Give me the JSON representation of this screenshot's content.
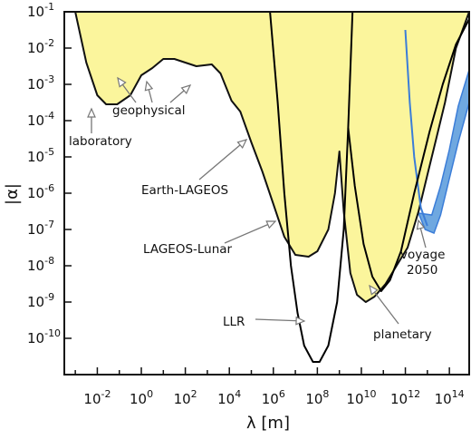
{
  "chart_data": {
    "type": "area",
    "xlabel": "λ  [m]",
    "ylabel": "|α|",
    "x_scale": "log10",
    "y_scale": "log10",
    "xlim_log10": [
      -3.5,
      14.9
    ],
    "ylim_log10": [
      -11.0,
      -1.0
    ],
    "x_ticks": [
      {
        "exp": -2,
        "base": "10",
        "sup": "-2"
      },
      {
        "exp": 0,
        "base": "10",
        "sup": "0"
      },
      {
        "exp": 2,
        "base": "10",
        "sup": "2"
      },
      {
        "exp": 4,
        "base": "10",
        "sup": "4"
      },
      {
        "exp": 6,
        "base": "10",
        "sup": "6"
      },
      {
        "exp": 8,
        "base": "10",
        "sup": "8"
      },
      {
        "exp": 10,
        "base": "10",
        "sup": "10"
      },
      {
        "exp": 12,
        "base": "10",
        "sup": "12"
      },
      {
        "exp": 14,
        "base": "10",
        "sup": "14"
      }
    ],
    "y_ticks": [
      {
        "exp": -1,
        "base": "10",
        "sup": "-1"
      },
      {
        "exp": -2,
        "base": "10",
        "sup": "-2"
      },
      {
        "exp": -3,
        "base": "10",
        "sup": "-3"
      },
      {
        "exp": -4,
        "base": "10",
        "sup": "-4"
      },
      {
        "exp": -5,
        "base": "10",
        "sup": "-5"
      },
      {
        "exp": -6,
        "base": "10",
        "sup": "-6"
      },
      {
        "exp": -7,
        "base": "10",
        "sup": "-7"
      },
      {
        "exp": -8,
        "base": "10",
        "sup": "-8"
      },
      {
        "exp": -9,
        "base": "10",
        "sup": "-9"
      },
      {
        "exp": -10,
        "base": "10",
        "sup": "-10"
      }
    ],
    "excluded_region": {
      "color": "#fbf59c",
      "boundary_log10": [
        [
          -3.0,
          -1.0
        ],
        [
          -2.5,
          -2.4
        ],
        [
          -2.0,
          -3.3
        ],
        [
          -1.6,
          -3.55
        ],
        [
          -1.1,
          -3.55
        ],
        [
          -0.5,
          -3.3
        ],
        [
          0.0,
          -2.75
        ],
        [
          0.5,
          -2.55
        ],
        [
          1.0,
          -2.3
        ],
        [
          1.5,
          -2.3
        ],
        [
          2.0,
          -2.4
        ],
        [
          2.5,
          -2.5
        ],
        [
          3.2,
          -2.45
        ],
        [
          3.6,
          -2.7
        ],
        [
          4.1,
          -3.45
        ],
        [
          4.5,
          -3.75
        ],
        [
          5.0,
          -4.6
        ],
        [
          5.5,
          -5.4
        ],
        [
          6.0,
          -6.3
        ],
        [
          6.5,
          -7.2
        ],
        [
          7.0,
          -7.7
        ],
        [
          7.6,
          -7.75
        ],
        [
          8.0,
          -7.6
        ],
        [
          8.5,
          -7.0
        ],
        [
          8.8,
          -6.0
        ],
        [
          9.0,
          -4.85
        ],
        [
          9.2,
          -6.5
        ],
        [
          9.5,
          -8.2
        ],
        [
          9.8,
          -8.8
        ],
        [
          10.2,
          -9.0
        ],
        [
          10.6,
          -8.85
        ],
        [
          11.1,
          -8.5
        ],
        [
          11.6,
          -8.0
        ],
        [
          12.1,
          -7.5
        ],
        [
          12.6,
          -6.5
        ],
        [
          13.0,
          -5.5
        ],
        [
          13.4,
          -4.5
        ],
        [
          13.8,
          -3.5
        ],
        [
          14.3,
          -2.0
        ],
        [
          14.9,
          -1.0
        ]
      ]
    },
    "curves": [
      {
        "color": "#000000",
        "points_log10": [
          [
            5.85,
            -1.0
          ],
          [
            6.2,
            -3.5
          ],
          [
            6.5,
            -6.0
          ],
          [
            6.8,
            -8.0
          ],
          [
            7.1,
            -9.3
          ],
          [
            7.4,
            -10.2
          ],
          [
            7.8,
            -10.65
          ],
          [
            8.1,
            -10.65
          ],
          [
            8.5,
            -10.2
          ],
          [
            8.9,
            -9.0
          ],
          [
            9.2,
            -7.0
          ],
          [
            9.4,
            -4.2
          ],
          [
            9.6,
            -1.0
          ]
        ]
      },
      {
        "color": "#000000",
        "points_log10": [
          [
            9.4,
            -4.2
          ],
          [
            9.7,
            -5.8
          ],
          [
            10.1,
            -7.4
          ],
          [
            10.5,
            -8.3
          ],
          [
            10.9,
            -8.7
          ],
          [
            11.3,
            -8.4
          ],
          [
            11.8,
            -7.6
          ],
          [
            12.4,
            -6.0
          ],
          [
            13.1,
            -4.3
          ],
          [
            13.7,
            -3.0
          ],
          [
            14.3,
            -1.9
          ],
          [
            14.9,
            -1.2
          ]
        ]
      }
    ],
    "projected_region": {
      "label": "Voyage 2050",
      "fill": "#6fa8e0",
      "line_color": "#3b7dd8",
      "line_log10": [
        [
          12.0,
          -1.5
        ],
        [
          12.2,
          -3.5
        ],
        [
          12.4,
          -5.0
        ],
        [
          12.7,
          -6.4
        ],
        [
          13.0,
          -6.9
        ]
      ],
      "polygon_log10": [
        [
          12.6,
          -6.55
        ],
        [
          13.2,
          -6.6
        ],
        [
          13.6,
          -5.8
        ],
        [
          14.0,
          -4.8
        ],
        [
          14.4,
          -3.6
        ],
        [
          14.9,
          -2.6
        ],
        [
          14.9,
          -3.5
        ],
        [
          14.4,
          -4.6
        ],
        [
          14.0,
          -5.6
        ],
        [
          13.6,
          -6.6
        ],
        [
          13.3,
          -7.1
        ],
        [
          12.9,
          -7.0
        ]
      ]
    },
    "annotations": [
      {
        "text": "geophysical"
      },
      {
        "text": "laboratory"
      },
      {
        "text": "Earth-LAGEOS"
      },
      {
        "text": "LAGEOS-Lunar"
      },
      {
        "text": "LLR"
      },
      {
        "text": "planetary"
      },
      {
        "text": "voyage"
      },
      {
        "text": "2050"
      }
    ]
  }
}
